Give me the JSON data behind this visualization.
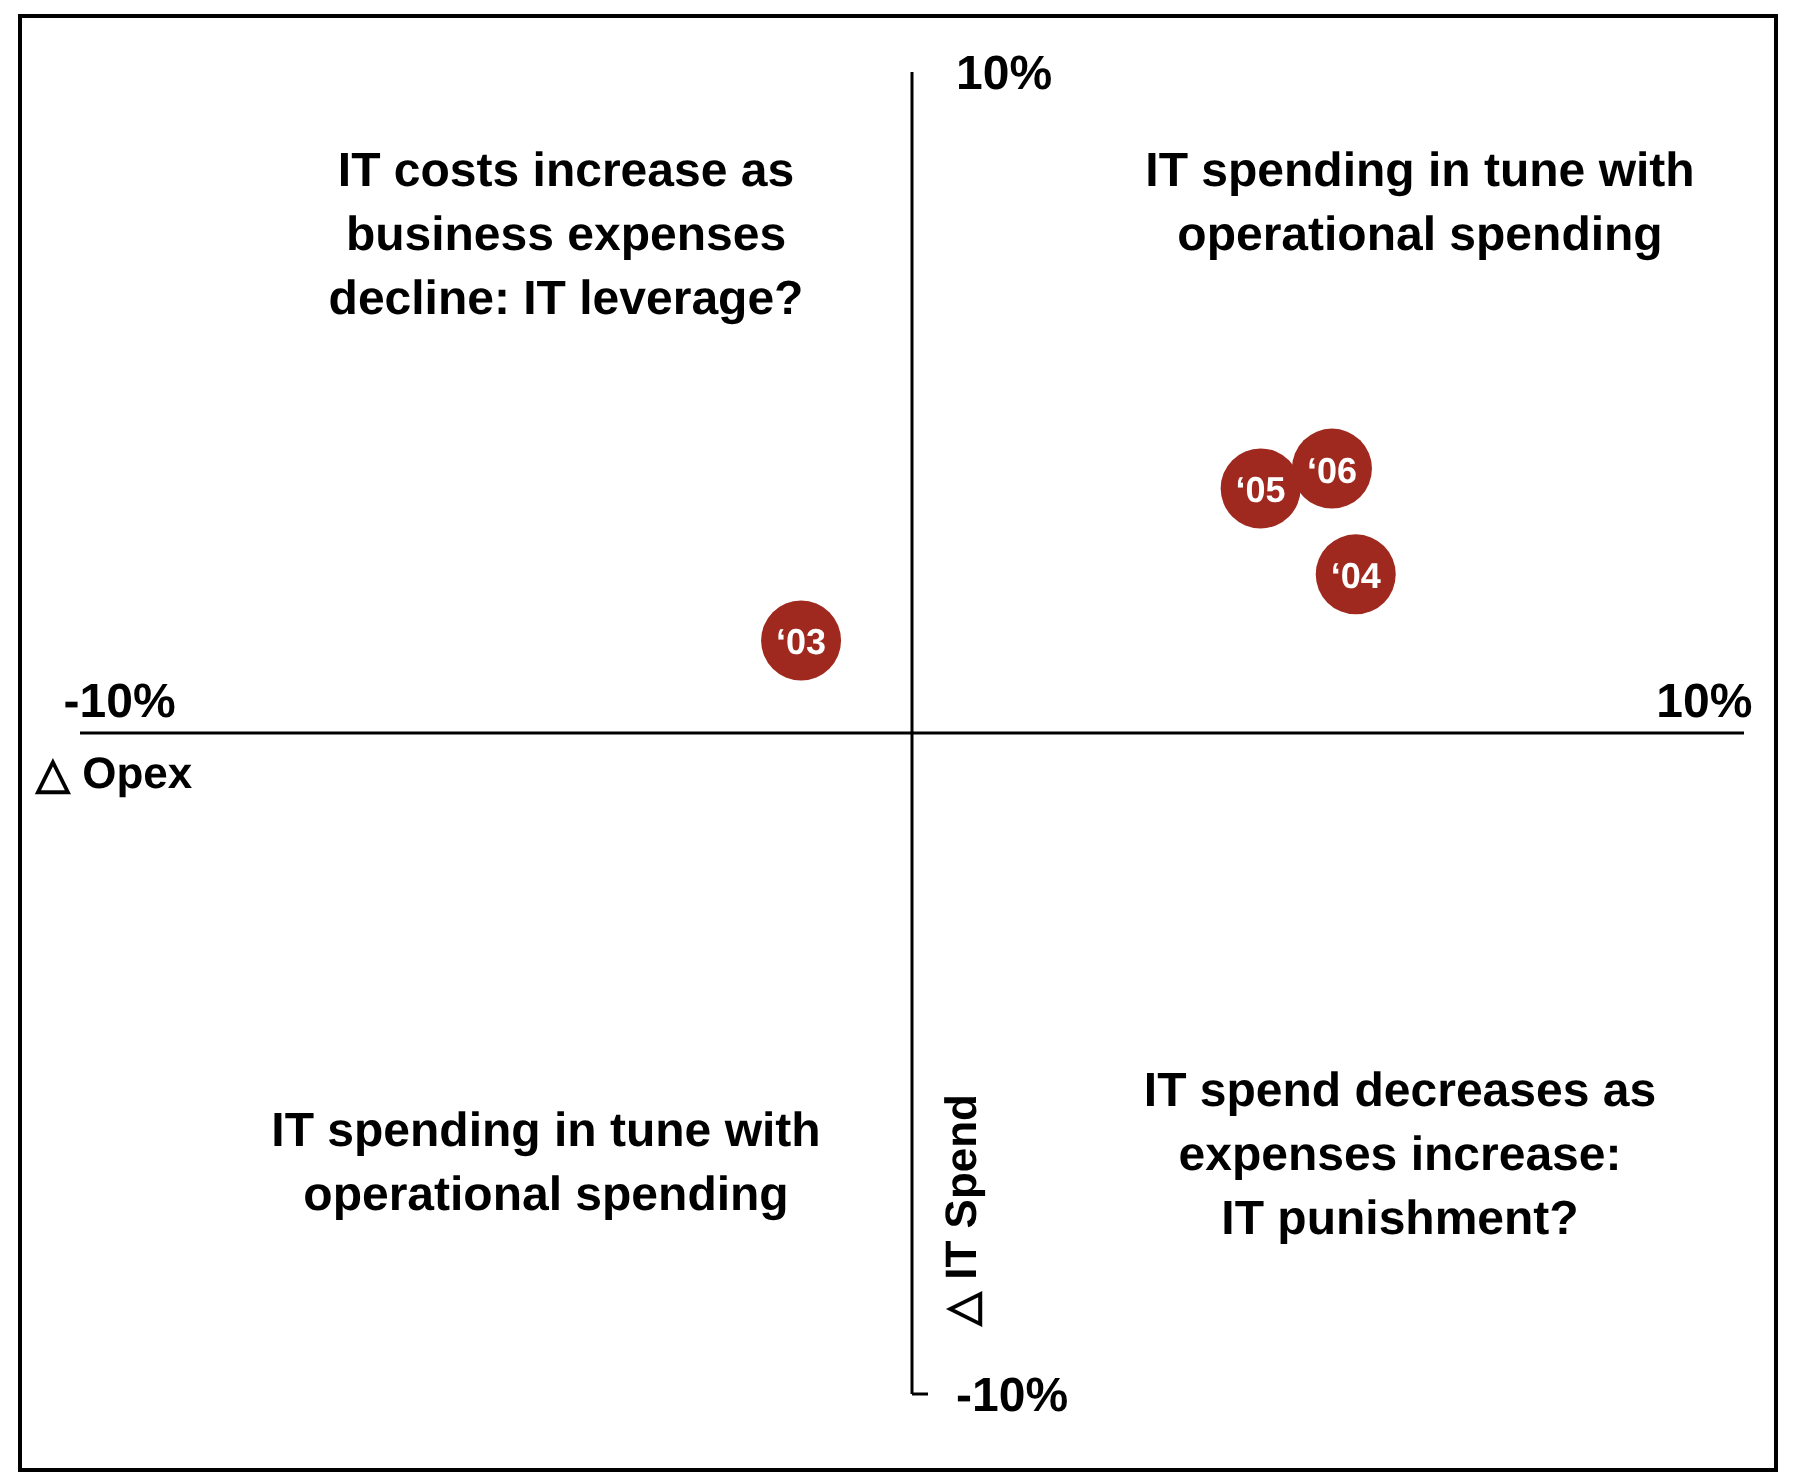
{
  "chart_data": {
    "type": "scatter",
    "xlabel": "△ Opex",
    "ylabel": "△ IT Spend",
    "xlim": [
      -10.5,
      10.5
    ],
    "xticks": [
      {
        "value": -10,
        "label": "-10%"
      },
      {
        "value": 10,
        "label": "10%"
      }
    ],
    "ylim": [
      -10,
      10
    ],
    "yticks": [
      {
        "value": -10,
        "label": "-10%"
      },
      {
        "value": 10,
        "label": "10%"
      }
    ],
    "grid": false,
    "marker": "circle",
    "series": [
      {
        "name": "‘03",
        "color": "#a0291f",
        "x": [
          -1.4
        ],
        "values": [
          1.4
        ]
      },
      {
        "name": "‘04",
        "color": "#a0291f",
        "x": [
          5.6
        ],
        "values": [
          2.4
        ]
      },
      {
        "name": "‘05",
        "color": "#a0291f",
        "x": [
          4.4
        ],
        "values": [
          3.7
        ]
      },
      {
        "name": "‘06",
        "color": "#a0291f",
        "x": [
          5.3
        ],
        "values": [
          4.0
        ]
      }
    ],
    "annotations": [
      "IT costs increase as\nbusiness expenses\ndecline: IT leverage?",
      "IT spending in tune with\noperational spending",
      "IT spending in tune with\noperational spending",
      "IT spend decreases as\nexpenses increase:\nIT punishment?"
    ]
  }
}
